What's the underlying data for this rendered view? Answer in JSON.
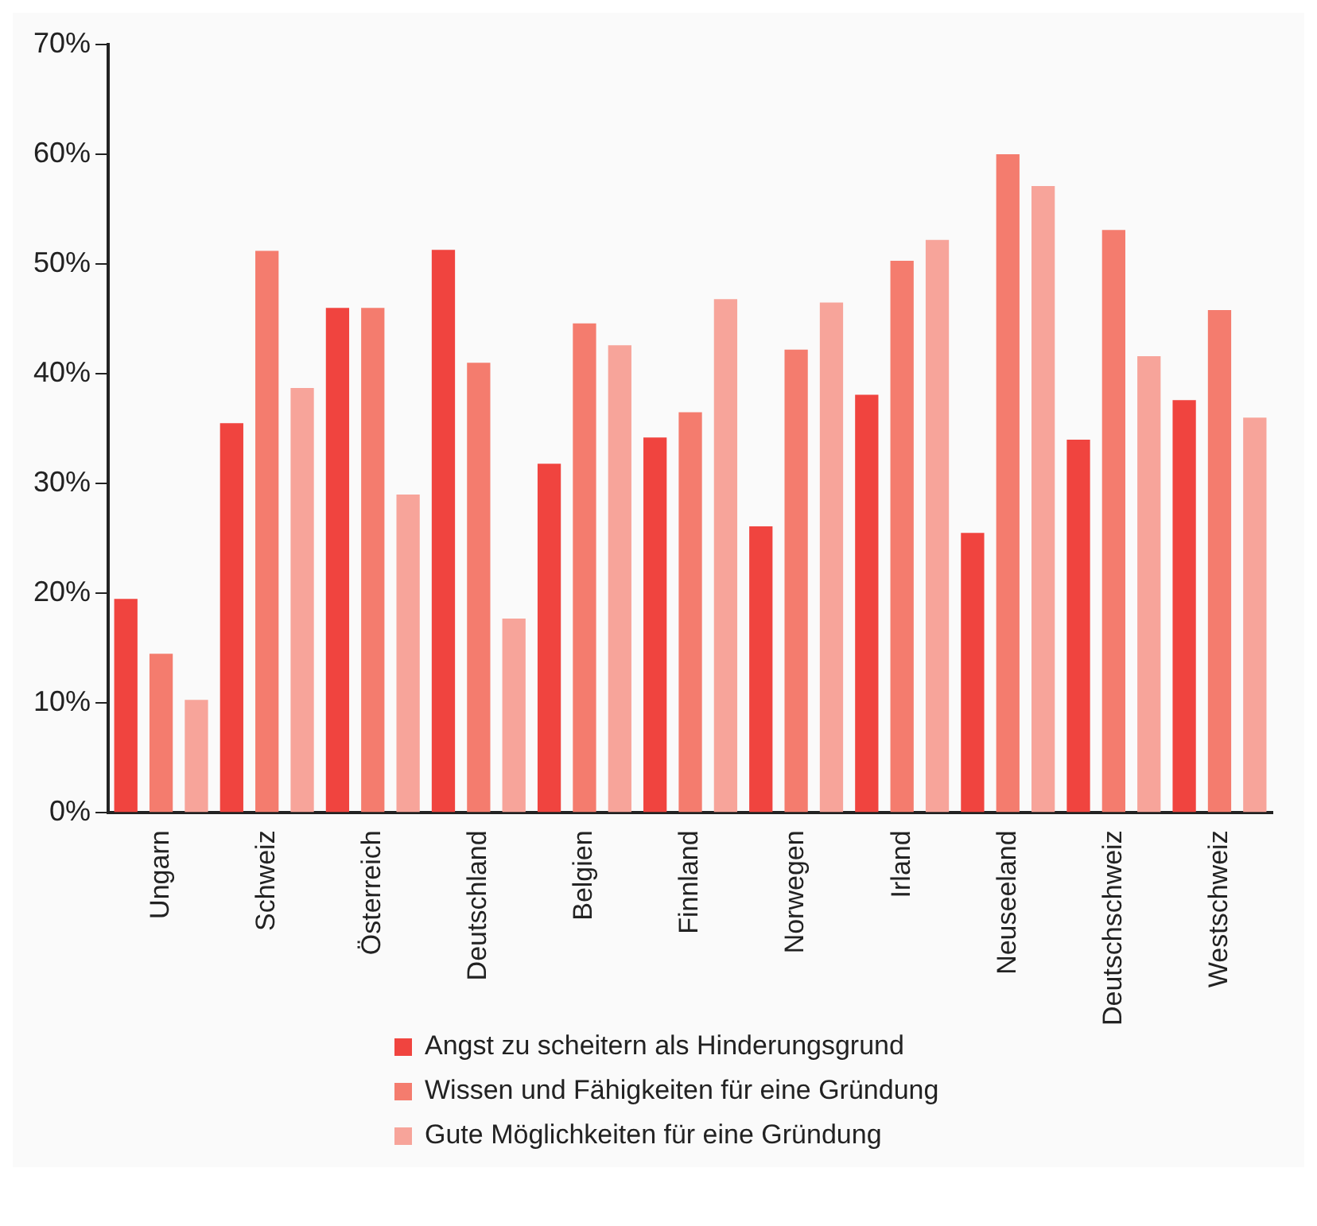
{
  "chart_data": {
    "type": "bar",
    "categories": [
      "Ungarn",
      "Schweiz",
      "Österreich",
      "Deutschland",
      "Belgien",
      "Finnland",
      "Norwegen",
      "Irland",
      "Neuseeland",
      "Deutschschweiz",
      "Westschweiz"
    ],
    "series": [
      {
        "name": "Angst zu scheitern als Hinderungsgrund",
        "color": "#f0443f",
        "values": [
          19.5,
          35.5,
          46,
          51.3,
          31.8,
          34.2,
          26.1,
          38.1,
          25.5,
          34,
          37.6
        ]
      },
      {
        "name": "Wissen und Fähigkeiten für eine Gründung",
        "color": "#f47c6e",
        "values": [
          14.5,
          51.2,
          46,
          41,
          44.6,
          36.5,
          42.2,
          50.3,
          60,
          53.1,
          45.8
        ]
      },
      {
        "name": "Gute Möglichkeiten für eine Gründung",
        "color": "#f7a49a",
        "values": [
          10.3,
          38.7,
          29,
          17.7,
          42.6,
          46.8,
          46.5,
          52.2,
          57.1,
          41.6,
          36
        ]
      }
    ],
    "ylim": [
      0,
      70
    ],
    "yticks": [
      {
        "value": 0,
        "label": "0%"
      },
      {
        "value": 10,
        "label": "10%"
      },
      {
        "value": 20,
        "label": "20%"
      },
      {
        "value": 30,
        "label": "30%"
      },
      {
        "value": 40,
        "label": "40%"
      },
      {
        "value": 50,
        "label": "50%"
      },
      {
        "value": 60,
        "label": "60%"
      },
      {
        "value": 70,
        "label": "70%"
      }
    ],
    "grid": false,
    "legend": "bottom"
  }
}
